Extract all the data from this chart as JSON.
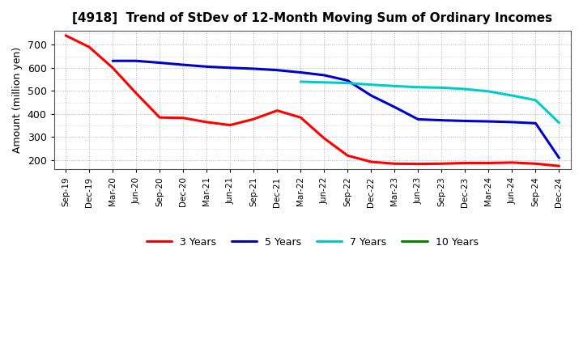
{
  "title": "[4918]  Trend of StDev of 12-Month Moving Sum of Ordinary Incomes",
  "ylabel": "Amount (million yen)",
  "ylim": [
    160,
    760
  ],
  "yticks": [
    200,
    300,
    400,
    500,
    600,
    700
  ],
  "background_color": "#ffffff",
  "grid_color": "#b0b0b0",
  "title_fontsize": 11,
  "legend_items": [
    "3 Years",
    "5 Years",
    "7 Years",
    "10 Years"
  ],
  "legend_colors": [
    "#ff0000",
    "#0000cc",
    "#00cccc",
    "#008800"
  ],
  "x_labels": [
    "Sep-19",
    "Dec-19",
    "Mar-20",
    "Jun-20",
    "Sep-20",
    "Dec-20",
    "Mar-21",
    "Jun-21",
    "Sep-21",
    "Dec-21",
    "Mar-22",
    "Jun-22",
    "Sep-22",
    "Dec-22",
    "Mar-23",
    "Jun-23",
    "Sep-23",
    "Dec-23",
    "Mar-24",
    "Jun-24",
    "Sep-24",
    "Dec-24"
  ],
  "line_3y_x": [
    0,
    1,
    2,
    3,
    4,
    5,
    6,
    7,
    8,
    9,
    10,
    11,
    12,
    13,
    14,
    15,
    16,
    17,
    18,
    19,
    20,
    21
  ],
  "line_3y_y": [
    740,
    690,
    600,
    490,
    385,
    383,
    365,
    352,
    378,
    415,
    385,
    295,
    220,
    193,
    185,
    184,
    185,
    188,
    188,
    190,
    185,
    175
  ],
  "line_5y_x": [
    2,
    3,
    4,
    5,
    6,
    7,
    8,
    9,
    10,
    11,
    12,
    13,
    14,
    15,
    16,
    17,
    18,
    19,
    20,
    21
  ],
  "line_5y_y": [
    630,
    630,
    622,
    613,
    605,
    600,
    596,
    590,
    580,
    568,
    545,
    480,
    430,
    377,
    373,
    370,
    368,
    365,
    360,
    210
  ],
  "line_7y_x": [
    10,
    11,
    12,
    13,
    14,
    15,
    16,
    17,
    18,
    19,
    20,
    21
  ],
  "line_7y_y": [
    540,
    537,
    534,
    527,
    521,
    516,
    514,
    508,
    498,
    480,
    460,
    362
  ],
  "line_10y_x": [
    21
  ],
  "line_10y_y": [
    210
  ]
}
